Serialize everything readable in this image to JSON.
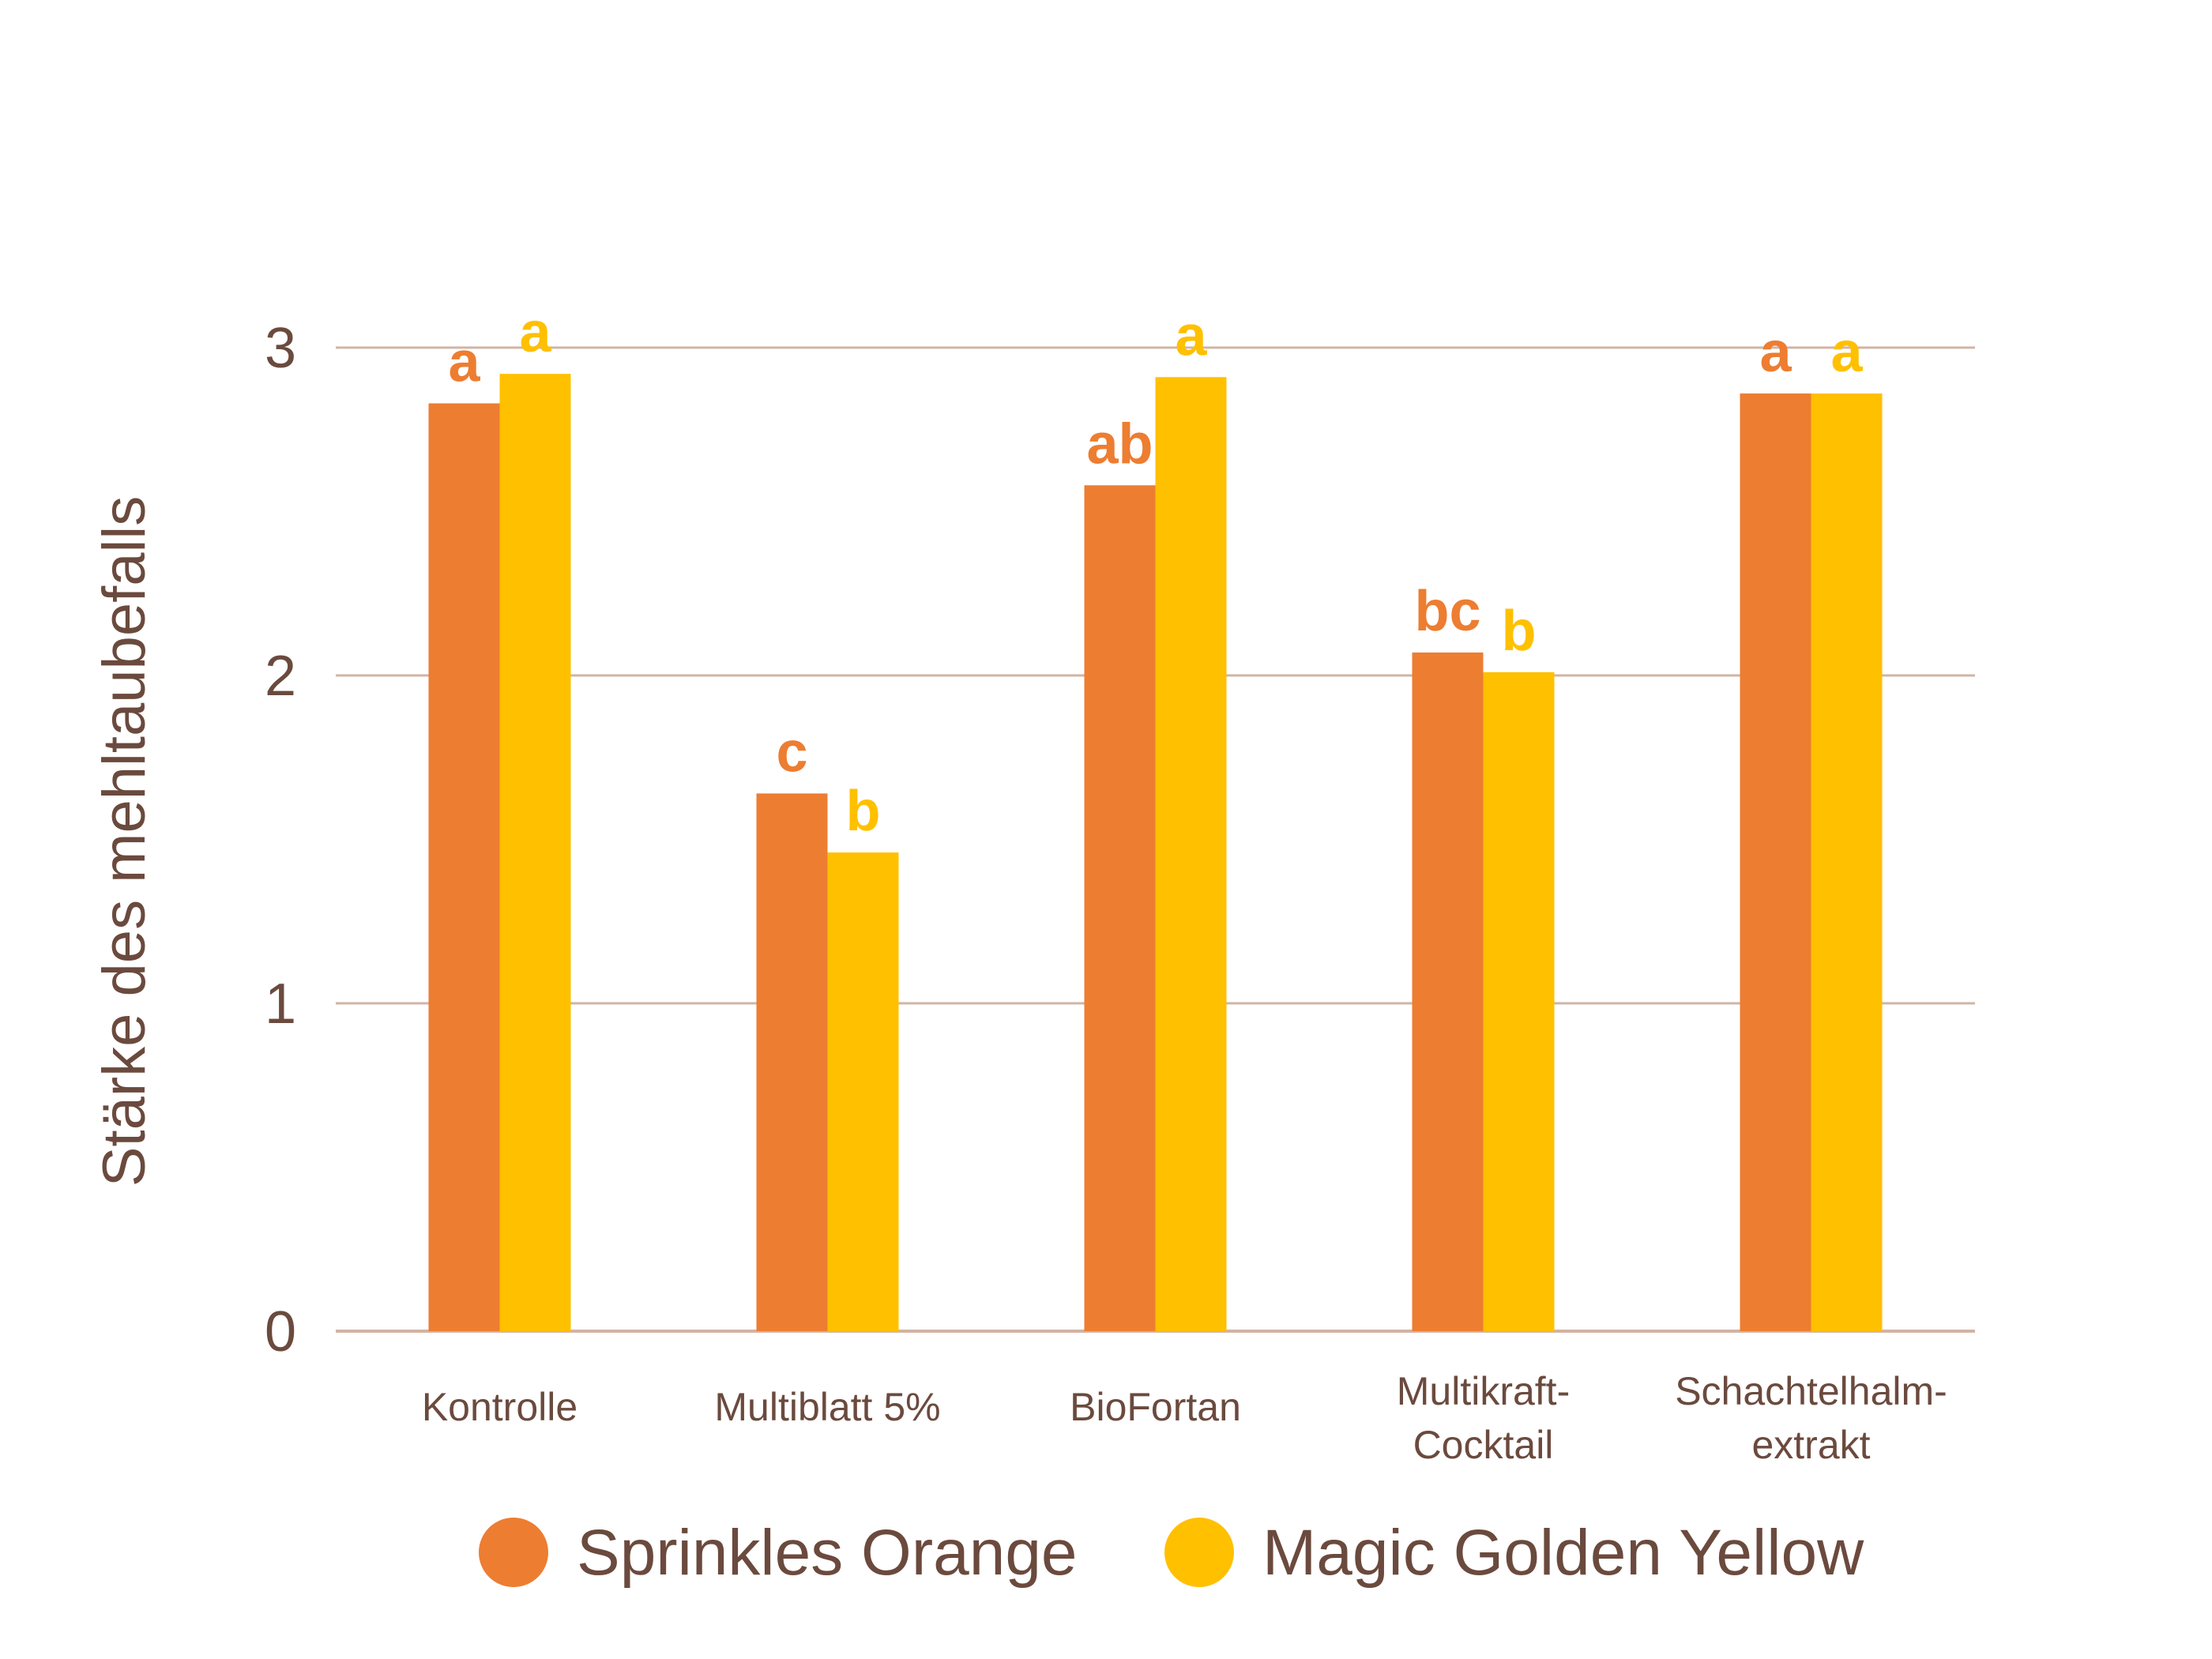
{
  "chart_data": {
    "type": "bar",
    "title": "",
    "xlabel": "",
    "ylabel": "Stärke des mehltaubefalls",
    "ylim": [
      0,
      3
    ],
    "yticks": [
      0,
      1,
      2,
      3
    ],
    "grid": true,
    "legend_position": "bottom",
    "categories": [
      [
        "Kontrolle"
      ],
      [
        "Multiblatt 5%"
      ],
      [
        "BioFortan"
      ],
      [
        "Multikraft-",
        "Cocktail"
      ],
      [
        "Schachtelhalm-",
        "extrakt"
      ]
    ],
    "series": [
      {
        "name": "Sprinkles Orange",
        "color": "#ed7d31",
        "values": [
          2.83,
          1.64,
          2.58,
          2.07,
          2.86
        ],
        "labels": [
          "a",
          "c",
          "ab",
          "bc",
          "a"
        ]
      },
      {
        "name": "Magic Golden Yellow",
        "color": "#ffc000",
        "values": [
          2.92,
          1.46,
          2.91,
          2.01,
          2.86
        ],
        "labels": [
          "a",
          "b",
          "a",
          "b",
          "a"
        ]
      }
    ]
  },
  "colors": {
    "text": "#6b4a3e",
    "grid": "#d2b4a4"
  }
}
